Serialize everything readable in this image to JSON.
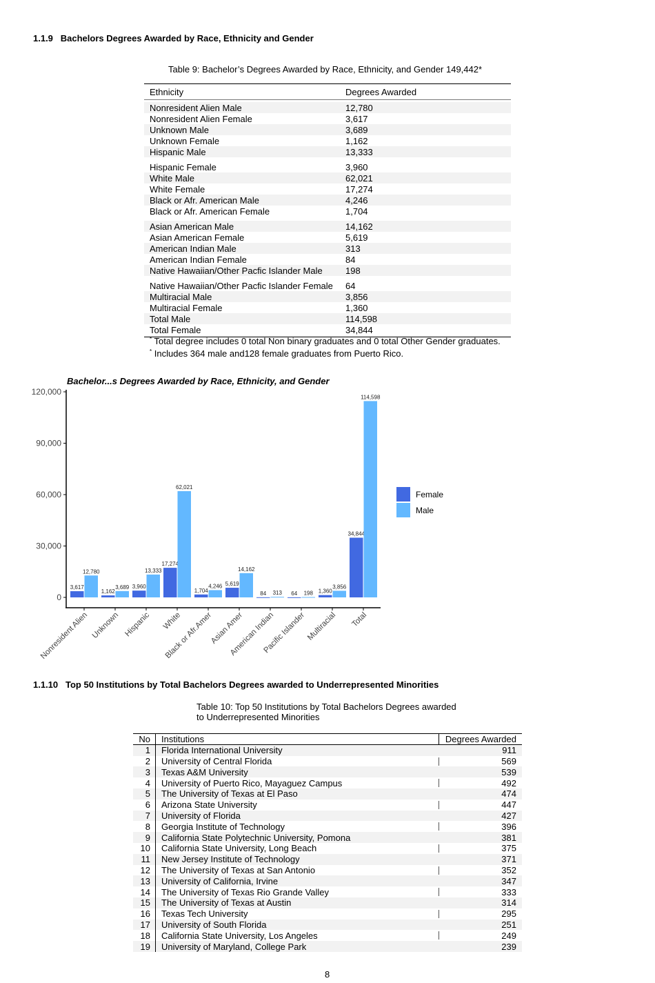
{
  "section_1": {
    "number": "1.1.9",
    "title": "Bachelors Degrees Awarded by Race, Ethnicity and Gender"
  },
  "table9": {
    "caption": "Table 9: Bachelor’s Degrees Awarded by Race, Ethnicity, and Gender 149,442*",
    "headers": [
      "Ethnicity",
      "Degrees Awarded"
    ],
    "rows": [
      [
        "Nonresident Alien Male",
        "12,780"
      ],
      [
        "Nonresident Alien Female",
        "3,617"
      ],
      [
        "Unknown Male",
        "3,689"
      ],
      [
        "Unknown Female",
        "1,162"
      ],
      [
        "Hispanic Male",
        "13,333"
      ],
      [
        "Hispanic Female",
        "3,960"
      ],
      [
        "White Male",
        "62,021"
      ],
      [
        "White Female",
        "17,274"
      ],
      [
        "Black or Afr. American Male",
        "4,246"
      ],
      [
        "Black or Afr. American Female",
        "1,704"
      ],
      [
        "Asian American Male",
        "14,162"
      ],
      [
        "Asian American Female",
        "5,619"
      ],
      [
        "American Indian Male",
        "313"
      ],
      [
        "American Indian Female",
        "84"
      ],
      [
        "Native Hawaiian/Other Pacfic Islander Male",
        "198"
      ],
      [
        "Native Hawaiian/Other Pacfic Islander Female",
        "64"
      ],
      [
        "Multiracial Male",
        "3,856"
      ],
      [
        "Multiracial Female",
        "1,360"
      ],
      [
        "Total Male",
        "114,598"
      ],
      [
        "Total Female",
        "34,844"
      ]
    ],
    "notes": [
      "Total degree includes 0 total Non binary graduates and 0 total Other Gender graduates.",
      "Includes 364 male and128 female graduates from Puerto Rico."
    ],
    "note_marker": "*"
  },
  "chart_data": {
    "type": "bar",
    "title": "Bachelor...s Degrees Awarded by Race, Ethnicity, and Gender",
    "categories": [
      "Nonresident Alien",
      "Unknown",
      "Hispanic",
      "White",
      "Black or Afr.Amer",
      "Asian Amer",
      "American Indian",
      "Pacific Islander",
      "Multiracial",
      "Total"
    ],
    "series": [
      {
        "name": "Female",
        "color": "#4169E1",
        "values": [
          3617,
          1162,
          3960,
          17274,
          1704,
          5619,
          84,
          64,
          1360,
          34844
        ],
        "labels": [
          "3,617",
          "1,162",
          "3,960",
          "17,274",
          "1,704",
          "5,619",
          "84",
          "64",
          "1,360",
          "34,844"
        ]
      },
      {
        "name": "Male",
        "color": "#63B8FF",
        "values": [
          12780,
          3689,
          13333,
          62021,
          4246,
          14162,
          313,
          198,
          3856,
          114598
        ],
        "labels": [
          "12,780",
          "3,689",
          "13,333",
          "62,021",
          "4,246",
          "14,162",
          "313",
          "198",
          "3,856",
          "114,598"
        ]
      }
    ],
    "ylim": [
      0,
      120000
    ],
    "yticks": [
      0,
      30000,
      60000,
      90000,
      120000
    ],
    "ytick_labels": [
      "0",
      "30,000",
      "60,000",
      "90,000",
      "120,000"
    ],
    "xlabel": "",
    "ylabel": "",
    "legend": "right",
    "grid": false
  },
  "section_2": {
    "number": "1.1.10",
    "title": "Top 50 Institutions by Total Bachelors Degrees awarded to Underrepresented Minorities"
  },
  "table10": {
    "caption_line1": "Table 10: Top 50 Institutions by Total Bachelors Degrees awarded",
    "caption_line2": "to Underrepresented Minorities",
    "headers": [
      "No",
      "Institutions",
      "Degrees Awarded"
    ],
    "rows": [
      [
        "1",
        "Florida International University",
        "911"
      ],
      [
        "2",
        "University of Central Florida",
        "569"
      ],
      [
        "3",
        "Texas A&M University",
        "539"
      ],
      [
        "4",
        "University of Puerto Rico, Mayaguez Campus",
        "492"
      ],
      [
        "5",
        "The University of Texas at El Paso",
        "474"
      ],
      [
        "6",
        "Arizona State University",
        "447"
      ],
      [
        "7",
        "University of Florida",
        "427"
      ],
      [
        "8",
        "Georgia Institute of Technology",
        "396"
      ],
      [
        "9",
        "California State Polytechnic University, Pomona",
        "381"
      ],
      [
        "10",
        "California State University, Long Beach",
        "375"
      ],
      [
        "11",
        "New Jersey Institute of Technology",
        "371"
      ],
      [
        "12",
        "The University of Texas at San Antonio",
        "352"
      ],
      [
        "13",
        "University of California, Irvine",
        "347"
      ],
      [
        "14",
        "The University of Texas Rio Grande Valley",
        "333"
      ],
      [
        "15",
        "The University of Texas at Austin",
        "314"
      ],
      [
        "16",
        "Texas Tech University",
        "295"
      ],
      [
        "17",
        "University of South Florida",
        "251"
      ],
      [
        "18",
        "California State University, Los Angeles",
        "249"
      ],
      [
        "19",
        "University of Maryland, College Park",
        "239"
      ]
    ]
  },
  "page_number": "8"
}
